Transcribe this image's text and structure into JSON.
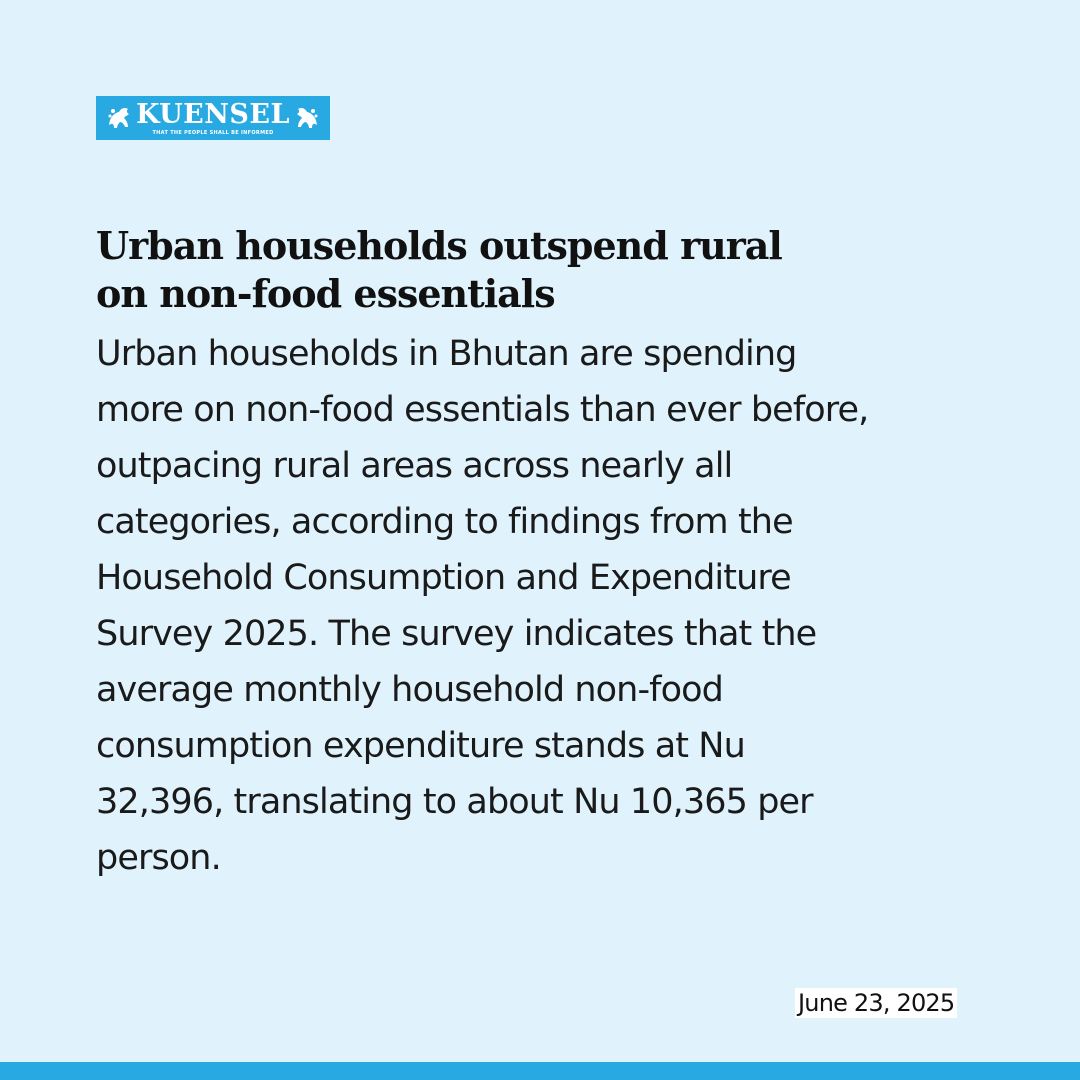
{
  "brand": {
    "name": "KUENSEL",
    "tagline": "THAT THE PEOPLE SHALL BE INFORMED",
    "color": "#29a9e1"
  },
  "article": {
    "headline_lines": [
      "Urban households outspend rural",
      "on non-food essentials"
    ],
    "body_lines": [
      "Urban households in Bhutan are spending",
      "more on non-food essentials than ever before,",
      "outpacing rural areas across nearly all",
      "categories, according to findings from the",
      "Household Consumption and Expenditure",
      "Survey 2025. The survey indicates that the",
      "average monthly household non-food",
      "consumption expenditure stands at Nu",
      "32,396, translating to about Nu 10,365 per",
      "person."
    ],
    "date": "June 23, 2025"
  },
  "colors": {
    "background": "#e0f3fc",
    "accent": "#29a9e1"
  }
}
